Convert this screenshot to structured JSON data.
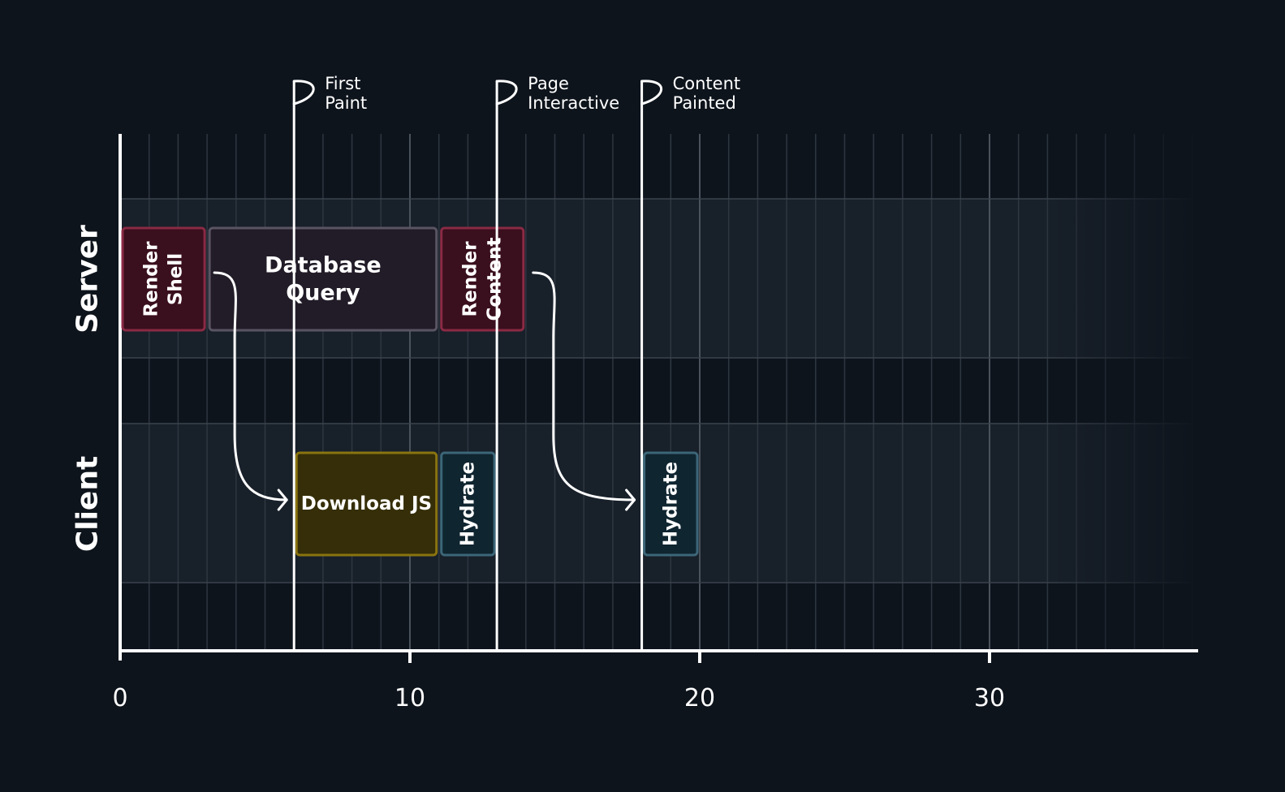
{
  "rows": [
    {
      "id": "server",
      "label": "Server"
    },
    {
      "id": "client",
      "label": "Client"
    }
  ],
  "axis": {
    "min": 0,
    "max": 37,
    "ticks": [
      {
        "value": 0,
        "label": "0"
      },
      {
        "value": 10,
        "label": "10"
      },
      {
        "value": 20,
        "label": "20"
      },
      {
        "value": 30,
        "label": "30"
      }
    ],
    "minor_step": 1
  },
  "tasks": [
    {
      "id": "render-shell",
      "row": "server",
      "start": 0,
      "end": 3,
      "lines": [
        "Render",
        "Shell"
      ],
      "vertical": true,
      "kind": "render"
    },
    {
      "id": "database-query",
      "row": "server",
      "start": 3,
      "end": 11,
      "lines": [
        "Database",
        "Query"
      ],
      "vertical": false,
      "kind": "query"
    },
    {
      "id": "render-content",
      "row": "server",
      "start": 11,
      "end": 14,
      "lines": [
        "Render",
        "Content"
      ],
      "vertical": true,
      "kind": "render"
    },
    {
      "id": "download-js",
      "row": "client",
      "start": 6,
      "end": 11,
      "lines": [
        "Download JS"
      ],
      "vertical": false,
      "kind": "download"
    },
    {
      "id": "hydrate-1",
      "row": "client",
      "start": 11,
      "end": 13,
      "lines": [
        "Hydrate"
      ],
      "vertical": true,
      "kind": "hydrate"
    },
    {
      "id": "hydrate-2",
      "row": "client",
      "start": 18,
      "end": 20,
      "lines": [
        "Hydrate"
      ],
      "vertical": true,
      "kind": "hydrate"
    }
  ],
  "milestones": [
    {
      "id": "first-paint",
      "value": 6,
      "lines": [
        "First",
        "Paint"
      ]
    },
    {
      "id": "page-interactive",
      "value": 13,
      "lines": [
        "Page",
        "Interactive"
      ]
    },
    {
      "id": "content-painted",
      "value": 18,
      "lines": [
        "Content",
        "Painted"
      ]
    }
  ],
  "arrows": [
    {
      "id": "shell-to-download",
      "from": "render-shell",
      "to": "download-js"
    },
    {
      "id": "content-to-hydrate",
      "from": "render-content",
      "to": "hydrate-2"
    }
  ],
  "colors": {
    "background": "#0e141c",
    "render_fill": "#3a0f1e",
    "render_stroke": "#8a2a44",
    "query_fill": "#221c28",
    "query_stroke": "#5a5462",
    "download_fill": "#352e08",
    "download_stroke": "#8a7410",
    "hydrate_fill": "#0f2530",
    "hydrate_stroke": "#3c6678"
  }
}
